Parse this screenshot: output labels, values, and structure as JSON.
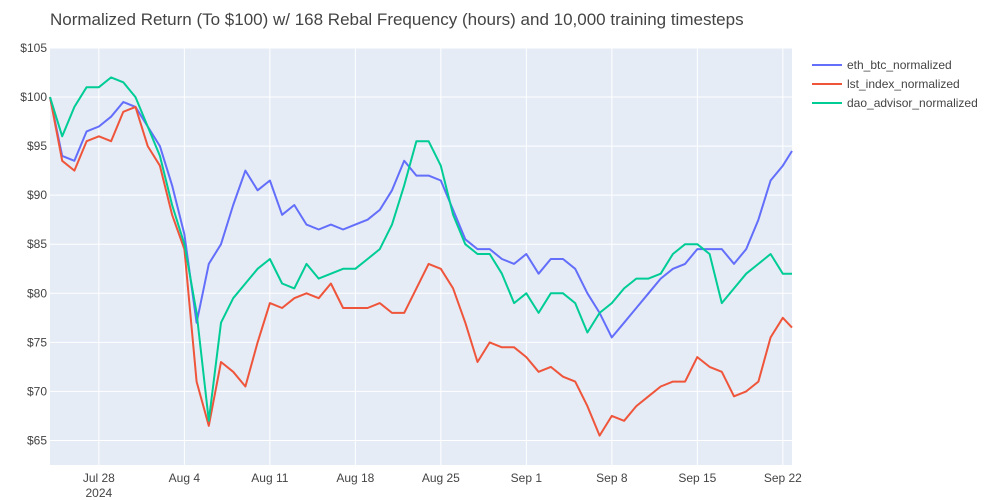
{
  "chart_data": {
    "type": "line",
    "title": "Normalized Return (To $100) w/ 168 Rebal Frequency (hours) and 10,000 training timesteps",
    "xlabel": "",
    "ylabel": "",
    "x_range": [
      "2024-07-24",
      "2024-09-22T18:00"
    ],
    "ylim": [
      62.5,
      105
    ],
    "y_ticks": [
      {
        "value": 65,
        "label": "$65"
      },
      {
        "value": 70,
        "label": "$70"
      },
      {
        "value": 75,
        "label": "$75"
      },
      {
        "value": 80,
        "label": "$80"
      },
      {
        "value": 85,
        "label": "$85"
      },
      {
        "value": 90,
        "label": "$90"
      },
      {
        "value": 95,
        "label": "$95"
      },
      {
        "value": 100,
        "label": "$100"
      },
      {
        "value": 105,
        "label": "$105"
      }
    ],
    "x_ticks": [
      {
        "date": "2024-07-28",
        "label": "Jul 28",
        "sublabel": "2024"
      },
      {
        "date": "2024-08-04",
        "label": "Aug 4",
        "sublabel": ""
      },
      {
        "date": "2024-08-11",
        "label": "Aug 11",
        "sublabel": ""
      },
      {
        "date": "2024-08-18",
        "label": "Aug 18",
        "sublabel": ""
      },
      {
        "date": "2024-08-25",
        "label": "Aug 25",
        "sublabel": ""
      },
      {
        "date": "2024-09-01",
        "label": "Sep 1",
        "sublabel": ""
      },
      {
        "date": "2024-09-08",
        "label": "Sep 8",
        "sublabel": ""
      },
      {
        "date": "2024-09-15",
        "label": "Sep 15",
        "sublabel": ""
      },
      {
        "date": "2024-09-22",
        "label": "Sep 22",
        "sublabel": ""
      }
    ],
    "grid": true,
    "legend_position": "top-right",
    "background": "#e5ecf6",
    "series": [
      {
        "name": "eth_btc_normalized",
        "color": "#636efa",
        "x": [
          "2024-07-24",
          "2024-07-25",
          "2024-07-26",
          "2024-07-27",
          "2024-07-28",
          "2024-07-29",
          "2024-07-30",
          "2024-07-31",
          "2024-08-01",
          "2024-08-02",
          "2024-08-03",
          "2024-08-04",
          "2024-08-05",
          "2024-08-06",
          "2024-08-07",
          "2024-08-08",
          "2024-08-09",
          "2024-08-10",
          "2024-08-11",
          "2024-08-12",
          "2024-08-13",
          "2024-08-14",
          "2024-08-15",
          "2024-08-16",
          "2024-08-17",
          "2024-08-18",
          "2024-08-19",
          "2024-08-20",
          "2024-08-21",
          "2024-08-22",
          "2024-08-23",
          "2024-08-24",
          "2024-08-25",
          "2024-08-26",
          "2024-08-27",
          "2024-08-28",
          "2024-08-29",
          "2024-08-30",
          "2024-08-31",
          "2024-09-01",
          "2024-09-02",
          "2024-09-03",
          "2024-09-04",
          "2024-09-05",
          "2024-09-06",
          "2024-09-07",
          "2024-09-08",
          "2024-09-09",
          "2024-09-10",
          "2024-09-11",
          "2024-09-12",
          "2024-09-13",
          "2024-09-14",
          "2024-09-15",
          "2024-09-16",
          "2024-09-17",
          "2024-09-18",
          "2024-09-19",
          "2024-09-20",
          "2024-09-21",
          "2024-09-22",
          "2024-09-22T18:00"
        ],
        "y": [
          100,
          94,
          93.5,
          96.5,
          97,
          98,
          99.5,
          99,
          97,
          95,
          91,
          86,
          77,
          83,
          85,
          89,
          92.5,
          90.5,
          91.5,
          88,
          89,
          87,
          86.5,
          87,
          86.5,
          87,
          87.5,
          88.5,
          90.5,
          93.5,
          92,
          92,
          91.5,
          88.5,
          85.5,
          84.5,
          84.5,
          83.5,
          83,
          84,
          82,
          83.5,
          83.5,
          82.5,
          80,
          78,
          75.5,
          77,
          78.5,
          80,
          81.5,
          82.5,
          83,
          84.5,
          84.5,
          84.5,
          83,
          84.5,
          87.5,
          91.5,
          93,
          94.5
        ]
      },
      {
        "name": "lst_index_normalized",
        "color": "#ef553b",
        "x": [
          "2024-07-24",
          "2024-07-25",
          "2024-07-26",
          "2024-07-27",
          "2024-07-28",
          "2024-07-29",
          "2024-07-30",
          "2024-07-31",
          "2024-08-01",
          "2024-08-02",
          "2024-08-03",
          "2024-08-04",
          "2024-08-05",
          "2024-08-06",
          "2024-08-07",
          "2024-08-08",
          "2024-08-09",
          "2024-08-10",
          "2024-08-11",
          "2024-08-12",
          "2024-08-13",
          "2024-08-14",
          "2024-08-15",
          "2024-08-16",
          "2024-08-17",
          "2024-08-18",
          "2024-08-19",
          "2024-08-20",
          "2024-08-21",
          "2024-08-22",
          "2024-08-23",
          "2024-08-24",
          "2024-08-25",
          "2024-08-26",
          "2024-08-27",
          "2024-08-28",
          "2024-08-29",
          "2024-08-30",
          "2024-08-31",
          "2024-09-01",
          "2024-09-02",
          "2024-09-03",
          "2024-09-04",
          "2024-09-05",
          "2024-09-06",
          "2024-09-07",
          "2024-09-08",
          "2024-09-09",
          "2024-09-10",
          "2024-09-11",
          "2024-09-12",
          "2024-09-13",
          "2024-09-14",
          "2024-09-15",
          "2024-09-16",
          "2024-09-17",
          "2024-09-18",
          "2024-09-19",
          "2024-09-20",
          "2024-09-21",
          "2024-09-22",
          "2024-09-22T18:00"
        ],
        "y": [
          100,
          93.5,
          92.5,
          95.5,
          96,
          95.5,
          98.5,
          99,
          95,
          93,
          88,
          84.5,
          71,
          66.5,
          73,
          72,
          70.5,
          75,
          79,
          78.5,
          79.5,
          80,
          79.5,
          81,
          78.5,
          78.5,
          78.5,
          79,
          78,
          78,
          80.5,
          83,
          82.5,
          80.5,
          77,
          73,
          75,
          74.5,
          74.5,
          73.5,
          72,
          72.5,
          71.5,
          71,
          68.5,
          65.5,
          67.5,
          67,
          68.5,
          69.5,
          70.5,
          71,
          71,
          73.5,
          72.5,
          72,
          69.5,
          70,
          71,
          75.5,
          77.5,
          76.5
        ]
      },
      {
        "name": "dao_advisor_normalized",
        "color": "#00cc96",
        "x": [
          "2024-07-24",
          "2024-07-25",
          "2024-07-26",
          "2024-07-27",
          "2024-07-28",
          "2024-07-29",
          "2024-07-30",
          "2024-07-31",
          "2024-08-01",
          "2024-08-02",
          "2024-08-03",
          "2024-08-04",
          "2024-08-05",
          "2024-08-06",
          "2024-08-07",
          "2024-08-08",
          "2024-08-09",
          "2024-08-10",
          "2024-08-11",
          "2024-08-12",
          "2024-08-13",
          "2024-08-14",
          "2024-08-15",
          "2024-08-16",
          "2024-08-17",
          "2024-08-18",
          "2024-08-19",
          "2024-08-20",
          "2024-08-21",
          "2024-08-22",
          "2024-08-23",
          "2024-08-24",
          "2024-08-25",
          "2024-08-26",
          "2024-08-27",
          "2024-08-28",
          "2024-08-29",
          "2024-08-30",
          "2024-08-31",
          "2024-09-01",
          "2024-09-02",
          "2024-09-03",
          "2024-09-04",
          "2024-09-05",
          "2024-09-06",
          "2024-09-07",
          "2024-09-08",
          "2024-09-09",
          "2024-09-10",
          "2024-09-11",
          "2024-09-12",
          "2024-09-13",
          "2024-09-14",
          "2024-09-15",
          "2024-09-16",
          "2024-09-17",
          "2024-09-18",
          "2024-09-19",
          "2024-09-20",
          "2024-09-21",
          "2024-09-22",
          "2024-09-22T18:00"
        ],
        "y": [
          100,
          96,
          99,
          101,
          101,
          102,
          101.5,
          100,
          97,
          94,
          89,
          85,
          78,
          67,
          77,
          79.5,
          81,
          82.5,
          83.5,
          81,
          80.5,
          83,
          81.5,
          82,
          82.5,
          82.5,
          83.5,
          84.5,
          87,
          91,
          95.5,
          95.5,
          93,
          88,
          85,
          84,
          84,
          82,
          79,
          80,
          78,
          80,
          80,
          79,
          76,
          78,
          79,
          80.5,
          81.5,
          81.5,
          82,
          84,
          85,
          85,
          84,
          79,
          80.5,
          82,
          83,
          84,
          82,
          82
        ]
      }
    ]
  }
}
